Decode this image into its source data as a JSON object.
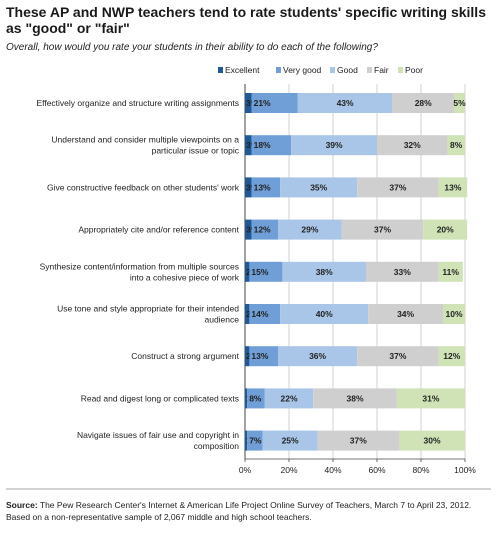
{
  "title": "These AP and NWP teachers tend to rate students' specific writing skills as \"good\" or \"fair\"",
  "subtitle": "Overall, how would you rate your students in their ability to do each of the following?",
  "source_label": "Source:",
  "source_text": "The Pew Research Center's Internet & American Life Project Online Survey of Teachers, March 7 to April 23, 2012.  Based on a non-representative sample of 2,067 middle and high school teachers.",
  "chart_data": {
    "type": "bar",
    "orientation": "horizontal",
    "stacked": true,
    "categories": [
      "Effectively organize and structure writing assignments",
      "Understand and consider multiple viewpoints on a particular issue or topic",
      "Give constructive feedback on other students' work",
      "Appropriately cite and/or reference content",
      "Synthesize content/information from multiple sources into a cohesive piece of work",
      "Use tone and style appropriate for their intended audience",
      "Construct a strong argument",
      "Read and digest long or complicated texts",
      "Navigate issues of fair use and copyright in composition"
    ],
    "category_lines": [
      [
        "Effectively organize and structure writing assignments"
      ],
      [
        "Understand and consider multiple viewpoints on a",
        "particular issue or topic"
      ],
      [
        "Give constructive feedback on other students' work"
      ],
      [
        "Appropriately cite and/or reference content"
      ],
      [
        "Synthesize content/information from multiple sources",
        "into a cohesive piece of work"
      ],
      [
        "Use tone and style appropriate for their intended",
        "audience"
      ],
      [
        "Construct a strong argument"
      ],
      [
        "Read and digest long or complicated texts"
      ],
      [
        "Navigate issues of fair use and copyright in",
        "composition"
      ]
    ],
    "series": [
      {
        "name": "Excellent",
        "color": "#1f5a96",
        "values": [
          3,
          3,
          3,
          3,
          2,
          2,
          2,
          1,
          1
        ]
      },
      {
        "name": "Very good",
        "color": "#6f9fd6",
        "values": [
          21,
          18,
          13,
          12,
          15,
          14,
          13,
          8,
          7
        ]
      },
      {
        "name": "Good",
        "color": "#a9c6e8",
        "values": [
          43,
          39,
          35,
          29,
          38,
          40,
          36,
          22,
          25
        ]
      },
      {
        "name": "Fair",
        "color": "#cfcfcf",
        "values": [
          28,
          32,
          37,
          37,
          33,
          34,
          37,
          38,
          37
        ]
      },
      {
        "name": "Poor",
        "color": "#cfe3b6",
        "values": [
          5,
          8,
          13,
          20,
          11,
          10,
          12,
          31,
          30
        ]
      }
    ],
    "x_ticks": [
      "0%",
      "20%",
      "40%",
      "60%",
      "80%",
      "100%"
    ],
    "xlim": [
      0,
      100
    ],
    "value_suffix": "%",
    "legend_position": "top",
    "grid": true
  }
}
